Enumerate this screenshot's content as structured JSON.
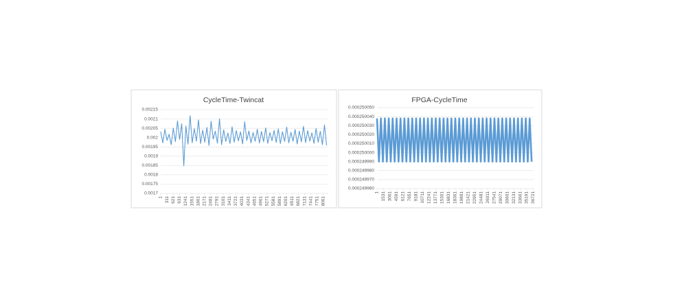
{
  "chart_data": [
    {
      "type": "line",
      "title": "CycleTime-Twincat",
      "x": [
        1,
        105,
        209,
        313,
        417,
        521,
        625,
        729,
        833,
        937,
        1041,
        1145,
        1249,
        1353,
        1457,
        1561,
        1665,
        1769,
        1873,
        1977,
        2081,
        2185,
        2289,
        2393,
        2497,
        2601,
        2705,
        2809,
        2913,
        3017,
        3121,
        3225,
        3329,
        3433,
        3537,
        3641,
        3745,
        3849,
        3953,
        4057,
        4161,
        4265,
        4369,
        4473,
        4577,
        4681,
        4785,
        4889,
        4993,
        5097,
        5201,
        5305,
        5409,
        5513,
        5617,
        5721,
        5825,
        5929,
        6033,
        6137,
        6241,
        6345,
        6449,
        6553,
        6657,
        6761,
        6865,
        6969,
        7073,
        7177,
        7281,
        7385,
        7489,
        7593,
        7697,
        7801,
        7905,
        8009,
        8113,
        8217
      ],
      "values": [
        0.002032,
        0.001972,
        0.002045,
        0.001985,
        0.002018,
        0.001962,
        0.002051,
        0.001978,
        0.00209,
        0.00199,
        0.002075,
        0.001848,
        0.002062,
        0.001965,
        0.002118,
        0.001972,
        0.002048,
        0.001981,
        0.002095,
        0.001968,
        0.00204,
        0.001975,
        0.002055,
        0.001958,
        0.002088,
        0.001992,
        0.002035,
        0.00197,
        0.002102,
        0.001962,
        0.002042,
        0.001979,
        0.002025,
        0.001968,
        0.002058,
        0.001975,
        0.002038,
        0.001982,
        0.002031,
        0.001966,
        0.002085,
        0.001985,
        0.002036,
        0.001972,
        0.002028,
        0.00198,
        0.002045,
        0.001971,
        0.002033,
        0.001978,
        0.002052,
        0.001969,
        0.002027,
        0.001983,
        0.002039,
        0.001974,
        0.002047,
        0.001968,
        0.002032,
        0.001979,
        0.002056,
        0.001972,
        0.002029,
        0.00198,
        0.002044,
        0.001966,
        0.002035,
        0.001977,
        0.002061,
        0.001973,
        0.002038,
        0.001981,
        0.002026,
        0.001969,
        0.002049,
        0.001975,
        0.002034,
        0.001962,
        0.002068,
        0.001958
      ],
      "color": "#5b9bd5",
      "xlim": [
        1,
        8300
      ],
      "xticks": [
        1,
        311,
        621,
        931,
        1241,
        1551,
        1861,
        2171,
        2481,
        2791,
        3101,
        3411,
        3721,
        4031,
        4341,
        4651,
        4961,
        5271,
        5581,
        5891,
        6201,
        6511,
        6821,
        7131,
        7441,
        7751,
        8061
      ],
      "ylim": [
        0.0017,
        0.00215
      ],
      "yticks": [
        0.00215,
        0.0021,
        0.00205,
        0.002,
        0.00195,
        0.0019,
        0.00185,
        0.0018,
        0.00175,
        0.0017
      ],
      "grid": true
    },
    {
      "type": "line",
      "title": "FPGA-CycleTime",
      "x": [
        1,
        461,
        921,
        1381,
        1841,
        2301,
        2761,
        3221,
        3681,
        4141,
        4601,
        5061,
        5521,
        5981,
        6441,
        6901,
        7361,
        7821,
        8281,
        8741,
        9201,
        9661,
        10121,
        10581,
        11041,
        11501,
        11961,
        12421,
        12881,
        13341,
        13801,
        14261,
        14721,
        15181,
        15641,
        16101,
        16561,
        17021,
        17481,
        17941,
        18401,
        18861,
        19321,
        19781,
        20241,
        20701,
        21161,
        21621,
        22081,
        22541,
        23001,
        23461,
        23921,
        24381,
        24841,
        25301,
        25761,
        26221,
        26681,
        27141,
        27601,
        28061,
        28521,
        28981,
        29441,
        29901,
        30361,
        30821,
        31281,
        31741,
        32201,
        32661,
        33121,
        33581,
        34041,
        34501,
        34961,
        35421,
        35881,
        36341
      ],
      "values": [
        0.000250038,
        0.00024999,
        0.000250038,
        0.00024999,
        0.000250038,
        0.00024999,
        0.000250038,
        0.00024999,
        0.000250038,
        0.00024999,
        0.000250038,
        0.00024999,
        0.000250038,
        0.00024999,
        0.000250038,
        0.00024999,
        0.000250038,
        0.00024999,
        0.000250038,
        0.00024999,
        0.000250038,
        0.00024999,
        0.000250038,
        0.00024999,
        0.000250038,
        0.00024999,
        0.000250038,
        0.00024999,
        0.000250038,
        0.00024999,
        0.000250038,
        0.00024999,
        0.000250038,
        0.00024999,
        0.000250038,
        0.00024999,
        0.000250038,
        0.00024999,
        0.000250038,
        0.00024999,
        0.000250038,
        0.00024999,
        0.000250038,
        0.00024999,
        0.000250038,
        0.00024999,
        0.000250038,
        0.00024999,
        0.000250038,
        0.00024999,
        0.000250038,
        0.00024999,
        0.000250038,
        0.00024999,
        0.000250038,
        0.00024999,
        0.000250038,
        0.00024999,
        0.000250038,
        0.00024999,
        0.000250038,
        0.00024999,
        0.000250038,
        0.00024999,
        0.000250038,
        0.00024999,
        0.000250038,
        0.00024999,
        0.000250038,
        0.00024999,
        0.000250038,
        0.00024999,
        0.000250038,
        0.00024999,
        0.000250038,
        0.00024999,
        0.000250038,
        0.00024999,
        0.000250038,
        0.00024999
      ],
      "color": "#5b9bd5",
      "xlim": [
        1,
        36800
      ],
      "xticks": [
        1,
        1531,
        3061,
        4591,
        6121,
        7651,
        9181,
        10711,
        12241,
        13771,
        15301,
        16831,
        18361,
        19891,
        21421,
        22951,
        24481,
        26011,
        27541,
        29071,
        30601,
        32131,
        33661,
        35191,
        36721
      ],
      "ylim": [
        0.00024996,
        0.00025005
      ],
      "yticks": [
        {
          "value": 0.00025005,
          "label": "0.000250050"
        },
        {
          "value": 0.00025004,
          "label": "0.000250040"
        },
        {
          "value": 0.00025003,
          "label": "0.000250030"
        },
        {
          "value": 0.00025002,
          "label": "0.000250020"
        },
        {
          "value": 0.00025001,
          "label": "0.000250010"
        },
        {
          "value": 0.00025,
          "label": "0.000250000"
        },
        {
          "value": 0.00024999,
          "label": "0.000249990"
        },
        {
          "value": 0.00024998,
          "label": "0.000249980"
        },
        {
          "value": 0.00024997,
          "label": "0.000249970"
        },
        {
          "value": 0.00024996,
          "label": "0.000249960"
        }
      ],
      "grid": true
    }
  ]
}
